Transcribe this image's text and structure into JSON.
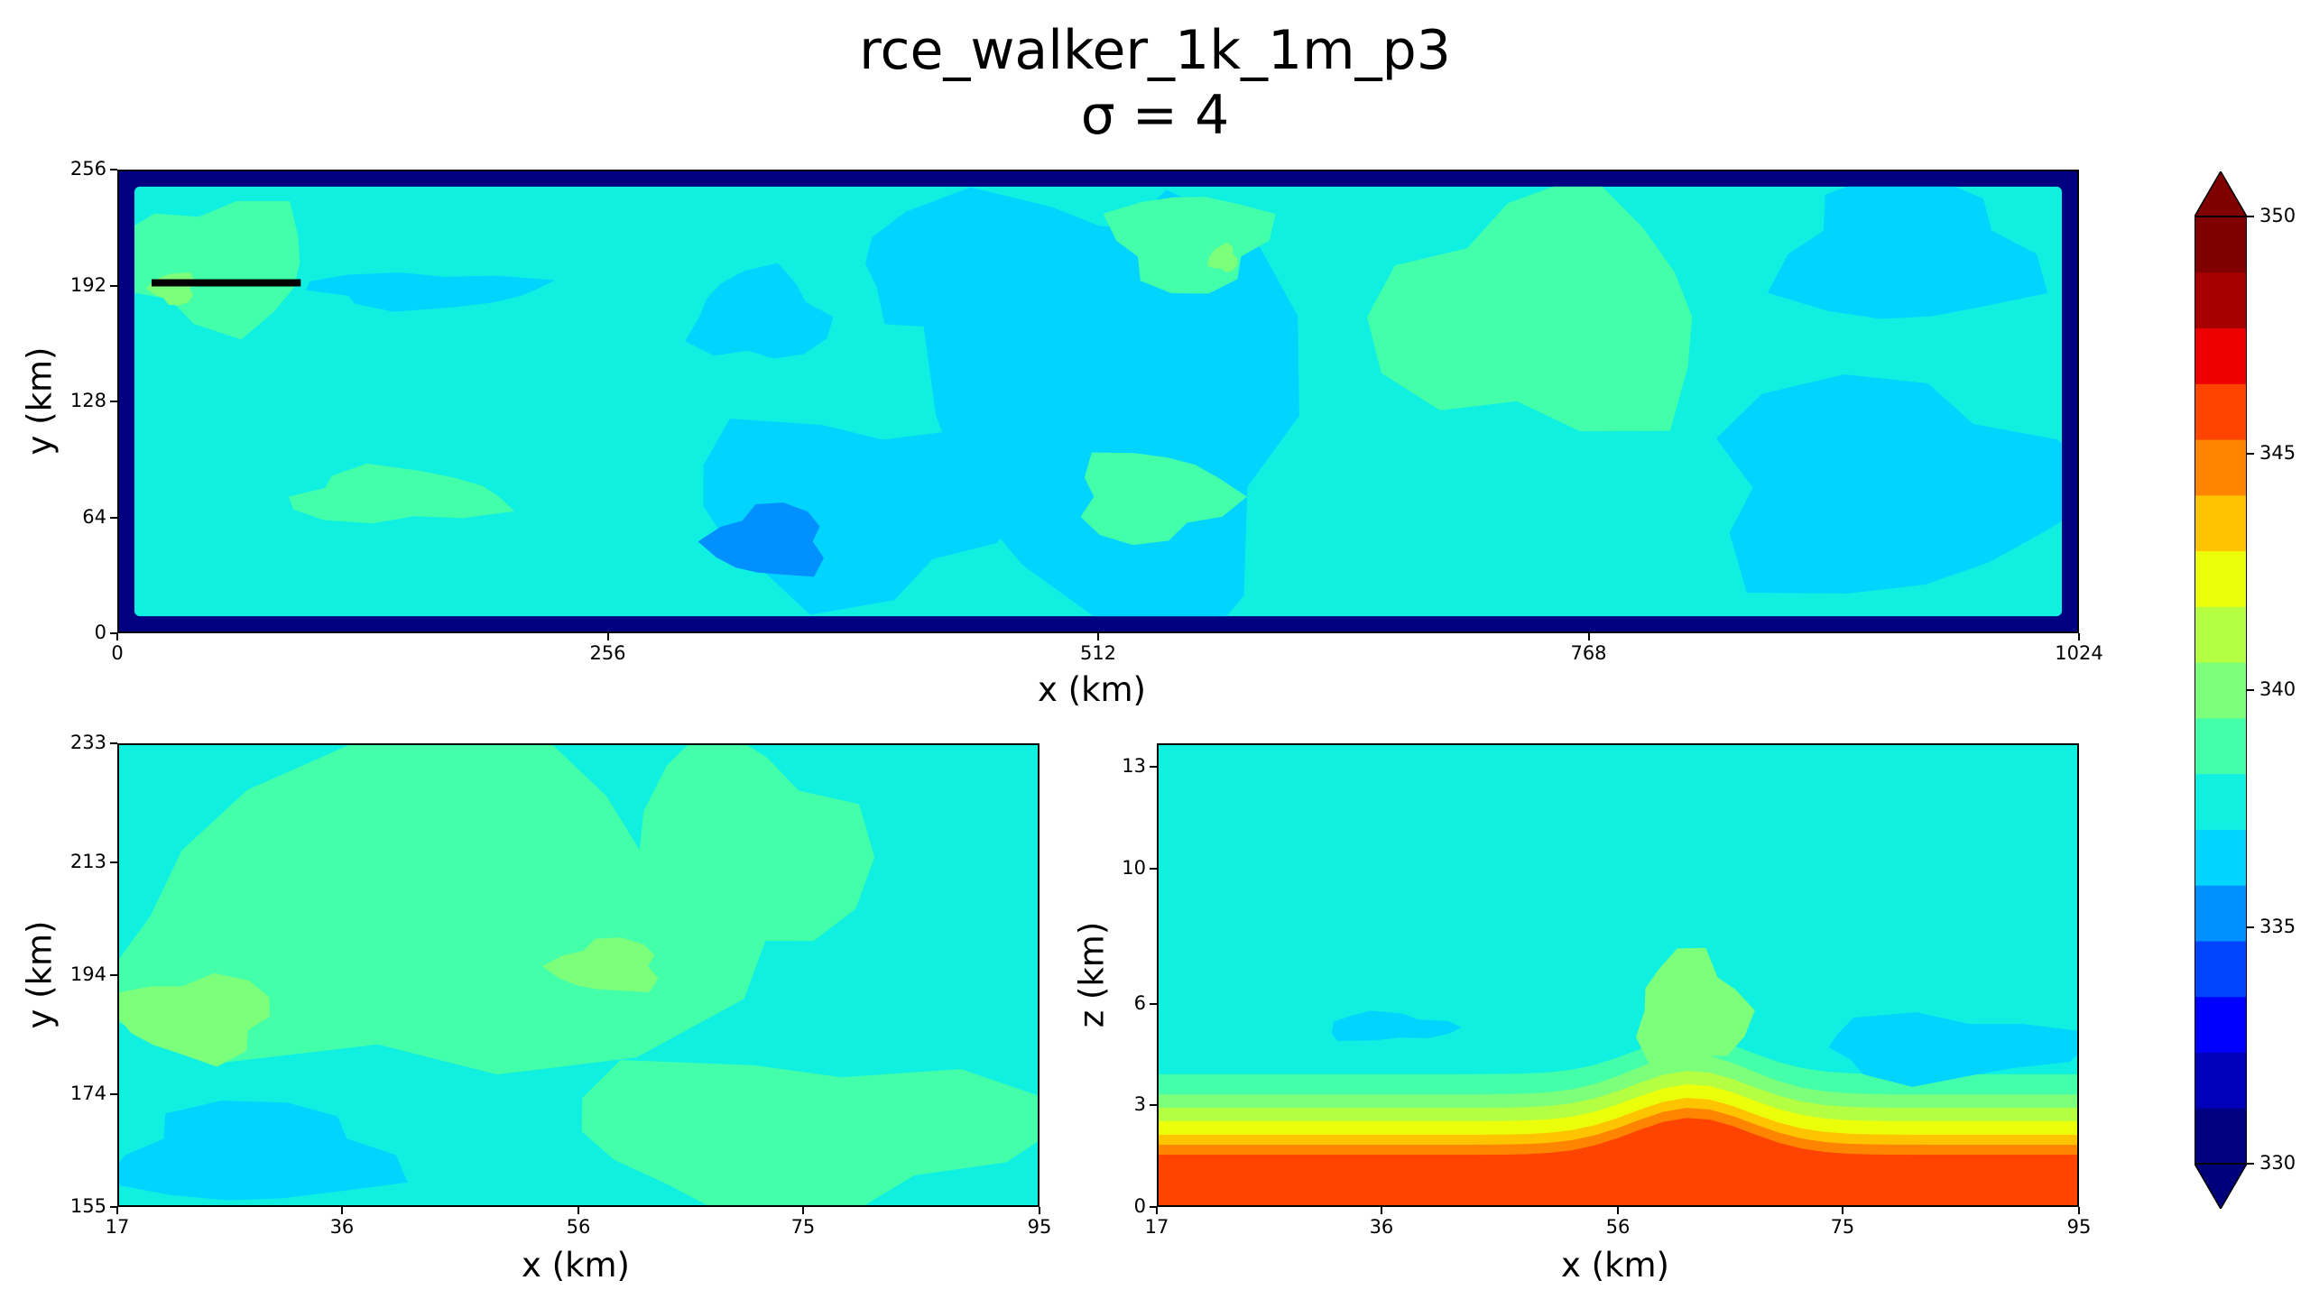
{
  "figure": {
    "title": "rce_walker_1k_1m_p3",
    "subtitle": "σ = 4"
  },
  "chart_data": [
    {
      "type": "heatmap",
      "id": "top",
      "xlabel": "x (km)",
      "ylabel": "y (km)",
      "xlim": [
        0,
        1024
      ],
      "ylim": [
        0,
        256
      ],
      "xticks": [
        0,
        256,
        512,
        768,
        1024
      ],
      "yticks": [
        0,
        64,
        128,
        192,
        256
      ],
      "background_level": 339.5,
      "edge_value": 331,
      "annotation": {
        "kind": "segment",
        "x": [
          17,
          95
        ],
        "y": 194
      },
      "regions": [
        {
          "value": 338,
          "x": [
            300,
            370
          ],
          "y": [
            150,
            200
          ]
        },
        {
          "value": 338,
          "x": [
            380,
            560
          ],
          "y": [
            170,
            240
          ]
        },
        {
          "value": 338,
          "x": [
            300,
            470
          ],
          "y": [
            20,
            120
          ]
        },
        {
          "value": 338,
          "x": [
            430,
            620
          ],
          "y": [
            0,
            240
          ]
        },
        {
          "value": 336.5,
          "x": [
            310,
            370
          ],
          "y": [
            30,
            70
          ]
        },
        {
          "value": 338,
          "x": [
            870,
            1000
          ],
          "y": [
            170,
            250
          ]
        },
        {
          "value": 338,
          "x": [
            830,
            1020
          ],
          "y": [
            20,
            140
          ]
        },
        {
          "value": 338,
          "x": [
            100,
            220
          ],
          "y": [
            180,
            200
          ]
        },
        {
          "value": 341,
          "x": [
            0,
            100
          ],
          "y": [
            170,
            240
          ]
        },
        {
          "value": 341,
          "x": [
            660,
            830
          ],
          "y": [
            110,
            240
          ]
        },
        {
          "value": 341,
          "x": [
            90,
            200
          ],
          "y": [
            60,
            90
          ]
        },
        {
          "value": 341,
          "x": [
            500,
            580
          ],
          "y": [
            50,
            100
          ]
        },
        {
          "value": 341,
          "x": [
            520,
            600
          ],
          "y": [
            190,
            245
          ]
        },
        {
          "value": 342.5,
          "x": [
            17,
            40
          ],
          "y": [
            182,
            200
          ]
        },
        {
          "value": 342.5,
          "x": [
            570,
            585
          ],
          "y": [
            200,
            215
          ]
        }
      ]
    },
    {
      "type": "heatmap",
      "id": "zoom",
      "xlabel": "x (km)",
      "ylabel": "y (km)",
      "xlim": [
        17,
        95
      ],
      "ylim": [
        155,
        233
      ],
      "xticks": [
        17,
        36,
        56,
        75,
        95
      ],
      "yticks": [
        155,
        174,
        194,
        213,
        233
      ],
      "background_level": 339.5,
      "regions": [
        {
          "value": 341,
          "x": [
            17,
            70
          ],
          "y": [
            175,
            233
          ]
        },
        {
          "value": 341,
          "x": [
            60,
            80
          ],
          "y": [
            195,
            233
          ]
        },
        {
          "value": 341,
          "x": [
            55,
            95
          ],
          "y": [
            155,
            180
          ]
        },
        {
          "value": 342.5,
          "x": [
            17,
            30
          ],
          "y": [
            180,
            194
          ]
        },
        {
          "value": 342.5,
          "x": [
            54,
            63
          ],
          "y": [
            191,
            200
          ]
        },
        {
          "value": 338,
          "x": [
            17,
            40
          ],
          "y": [
            155,
            172
          ]
        }
      ]
    },
    {
      "type": "heatmap",
      "id": "cross-section",
      "xlabel": "x (km)",
      "ylabel": "z (km)",
      "xlim": [
        17,
        95
      ],
      "ylim": [
        0,
        13.7
      ],
      "xticks": [
        17,
        36,
        56,
        75,
        95
      ],
      "yticks": [
        0,
        3,
        6,
        10,
        13
      ],
      "yticklabels": [
        "0",
        "3",
        "6",
        "10",
        "13"
      ],
      "level_boundaries_z": [
        {
          "value": 350,
          "z_side": 10.6,
          "z_center": 9.8
        },
        {
          "value": 348.5,
          "z_side": 10.2,
          "z_center": 9.3
        },
        {
          "value": 347,
          "z_side": 9.7,
          "z_center": 8.8
        },
        {
          "value": 345.5,
          "z_side": 9.2,
          "z_center": 8.4
        },
        {
          "value": 344,
          "z_side": 8.6,
          "z_center": 7.9
        },
        {
          "value": 342.5,
          "z_side": 8.0,
          "z_center": 7.5
        },
        {
          "value": 341,
          "z_side": 7.3,
          "z_center": 7.0
        },
        {
          "value": 339.5,
          "z_side": 6.5,
          "z_center": 6.4
        }
      ],
      "lower_boundaries_z": [
        {
          "value": 350,
          "z_side": 1.5,
          "z_center": 2.6
        },
        {
          "value": 348.5,
          "z_side": 1.8,
          "z_center": 2.9
        },
        {
          "value": 347,
          "z_side": 2.1,
          "z_center": 3.2
        },
        {
          "value": 345.5,
          "z_side": 2.5,
          "z_center": 3.6
        },
        {
          "value": 344,
          "z_side": 2.9,
          "z_center": 4.0
        },
        {
          "value": 342.5,
          "z_side": 3.3,
          "z_center": 4.5
        },
        {
          "value": 341,
          "z_side": 3.9,
          "z_center": 5.0
        }
      ]
    }
  ],
  "colorbar": {
    "min": 330,
    "max": 350,
    "step": 1.5,
    "ticks": [
      330,
      335,
      340,
      345,
      350
    ],
    "colors": [
      "#000080",
      "#0000b8",
      "#0000ff",
      "#0044ff",
      "#0090ff",
      "#00d4ff",
      "#10f0e0",
      "#44ffaa",
      "#7cff7a",
      "#b4ff42",
      "#ecff0a",
      "#ffc400",
      "#ff8400",
      "#ff4400",
      "#ee0000",
      "#a70000",
      "#800000"
    ],
    "under_color": "#00007a",
    "over_color": "#800000"
  }
}
